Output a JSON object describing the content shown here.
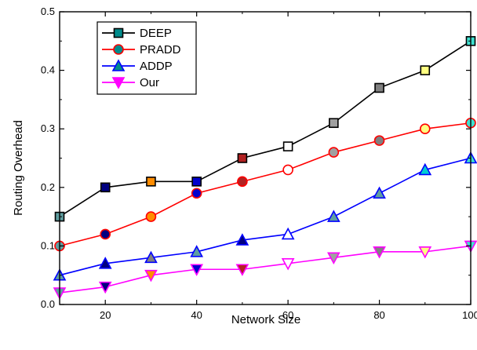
{
  "chart_data": {
    "type": "line",
    "xlabel": "Network Size",
    "ylabel": "Routing Overhead",
    "xlim": [
      10,
      100
    ],
    "ylim": [
      0.0,
      0.5
    ],
    "x_ticks": [
      20,
      40,
      60,
      80,
      100
    ],
    "x_tick_labels": [
      "20",
      "40",
      "60",
      "80",
      "100"
    ],
    "y_ticks": [
      0.0,
      0.1,
      0.2,
      0.3,
      0.4,
      0.5
    ],
    "y_tick_labels": [
      "0.0",
      "0.1",
      "0.2",
      "0.3",
      "0.4",
      "0.5"
    ],
    "grid": false,
    "legend_position": "top-left",
    "x": [
      10,
      20,
      30,
      40,
      50,
      60,
      70,
      80,
      90,
      100
    ],
    "series": [
      {
        "name": "DEEP",
        "values": [
          0.15,
          0.2,
          0.21,
          0.21,
          0.25,
          0.27,
          0.31,
          0.37,
          0.4,
          0.45
        ],
        "line_color": "#000000",
        "marker": "square",
        "marker_fills": [
          "#5f9ea0",
          "#000080",
          "#ff8c00",
          "#0000cd",
          "#b22222",
          "#ffffff",
          "#a0a0a0",
          "#808080",
          "#ffff80",
          "#40e0d0"
        ]
      },
      {
        "name": "PRADD",
        "values": [
          0.1,
          0.12,
          0.15,
          0.19,
          0.21,
          0.23,
          0.26,
          0.28,
          0.3,
          0.31
        ],
        "line_color": "#ff0000",
        "marker": "circle",
        "marker_fills": [
          "#5f9ea0",
          "#000080",
          "#ff8c00",
          "#0000cd",
          "#b22222",
          "#ffffff",
          "#a0a0a0",
          "#808080",
          "#ffff80",
          "#40e0d0"
        ]
      },
      {
        "name": "ADDP",
        "values": [
          0.05,
          0.07,
          0.08,
          0.09,
          0.11,
          0.12,
          0.15,
          0.19,
          0.23,
          0.25
        ],
        "line_color": "#0000ff",
        "marker": "triangle-up",
        "marker_fills": [
          "#5f9ea0",
          "#000080",
          "#808080",
          "#5f9ea0",
          "#000080",
          "#ffffff",
          "#5f9ea0",
          "#5f9ea0",
          "#00ced1",
          "#40e0d0"
        ]
      },
      {
        "name": "Our",
        "values": [
          0.02,
          0.03,
          0.05,
          0.06,
          0.06,
          0.07,
          0.08,
          0.09,
          0.09,
          0.1
        ],
        "line_color": "#ff00ff",
        "marker": "triangle-down",
        "marker_fills": [
          "#5f9ea0",
          "#000080",
          "#ff8c00",
          "#0000cd",
          "#b22222",
          "#ffffff",
          "#a0a0a0",
          "#808080",
          "#ffff80",
          "#40e0d0"
        ]
      }
    ],
    "legend_marker_fills": [
      "#008b8b",
      "#008b8b",
      "#008b8b",
      "#ff00ff"
    ]
  }
}
